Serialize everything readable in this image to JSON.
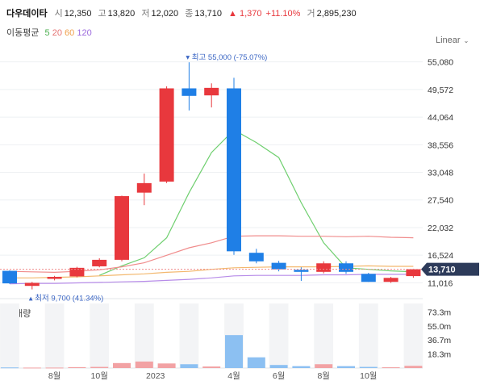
{
  "header": {
    "stock_name": "다우데이타",
    "open_label": "시",
    "open_value": "12,350",
    "high_label": "고",
    "high_value": "13,820",
    "low_label": "저",
    "low_value": "12,020",
    "close_label": "종",
    "close_value": "13,710",
    "change_value": "▲ 1,370",
    "change_pct": "+11.10%",
    "volume_label": "거",
    "volume_value": "2,895,230"
  },
  "moving_average": {
    "title": "이동평균",
    "periods": [
      {
        "label": "5",
        "color": "#4caf50"
      },
      {
        "label": "20",
        "color": "#e57373"
      },
      {
        "label": "60",
        "color": "#f0a04b"
      },
      {
        "label": "120",
        "color": "#9c6ade"
      }
    ]
  },
  "scale_mode": "Linear",
  "volume_panel": {
    "title": "거래량"
  },
  "colors": {
    "up": "#e8383d",
    "down": "#1f7fe6",
    "up_volume": "#f2a2a4",
    "down_volume": "#8cc0f2",
    "current_price_tag": "#2d3b5a"
  },
  "chart_data": {
    "type": "candlestick",
    "y_ticks": [
      "55,080",
      "49,572",
      "44,064",
      "38,556",
      "33,048",
      "27,540",
      "22,032",
      "16,524",
      "11,016"
    ],
    "y_range": [
      8500,
      56800
    ],
    "x_tick_labels": [
      "8월",
      "10월",
      "2023",
      "4월",
      "6월",
      "8월",
      "10월"
    ],
    "candles": [
      {
        "open": 13400,
        "high": 13500,
        "low": 10800,
        "close": 10900,
        "dir": "down",
        "volume": 0.8
      },
      {
        "open": 10400,
        "high": 11200,
        "low": 9700,
        "close": 11000,
        "dir": "up",
        "volume": 0.6
      },
      {
        "open": 11800,
        "high": 12400,
        "low": 11500,
        "close": 12200,
        "dir": "up",
        "volume": 0.6
      },
      {
        "open": 12300,
        "high": 14200,
        "low": 12100,
        "close": 14000,
        "dir": "up",
        "volume": 1.2
      },
      {
        "open": 14300,
        "high": 15900,
        "low": 14100,
        "close": 15600,
        "dir": "up",
        "volume": 1.5
      },
      {
        "open": 15600,
        "high": 28400,
        "low": 15300,
        "close": 28300,
        "dir": "up",
        "volume": 6.5
      },
      {
        "open": 29000,
        "high": 32800,
        "low": 26500,
        "close": 30900,
        "dir": "up",
        "volume": 8.5
      },
      {
        "open": 31200,
        "high": 50200,
        "low": 30900,
        "close": 49800,
        "dir": "up",
        "volume": 6.0
      },
      {
        "open": 49800,
        "high": 55000,
        "low": 45400,
        "close": 48300,
        "dir": "down",
        "volume": 5.0
      },
      {
        "open": 48400,
        "high": 50800,
        "low": 46000,
        "close": 49900,
        "dir": "up",
        "volume": 2.0
      },
      {
        "open": 49800,
        "high": 51900,
        "low": 16600,
        "close": 17300,
        "dir": "down",
        "volume": 43.0
      },
      {
        "open": 17000,
        "high": 17800,
        "low": 14900,
        "close": 15300,
        "dir": "down",
        "volume": 14.0
      },
      {
        "open": 15000,
        "high": 15400,
        "low": 13300,
        "close": 13700,
        "dir": "down",
        "volume": 4.0
      },
      {
        "open": 13600,
        "high": 14100,
        "low": 11400,
        "close": 13200,
        "dir": "down",
        "volume": 2.5
      },
      {
        "open": 13200,
        "high": 15300,
        "low": 12900,
        "close": 14900,
        "dir": "up",
        "volume": 5.0
      },
      {
        "open": 14900,
        "high": 15300,
        "low": 12800,
        "close": 13200,
        "dir": "down",
        "volume": 2.5
      },
      {
        "open": 12800,
        "high": 13000,
        "low": 11200,
        "close": 11200,
        "dir": "down",
        "volume": 1.5
      },
      {
        "open": 11200,
        "high": 12200,
        "low": 11000,
        "close": 12000,
        "dir": "up",
        "volume": 1.0
      },
      {
        "open": 12350,
        "high": 13820,
        "low": 12020,
        "close": 13710,
        "dir": "up",
        "volume": 2.9
      }
    ],
    "ma_lines": [
      {
        "name": "5",
        "color": "#6fcf6f",
        "values": [
          null,
          null,
          null,
          null,
          12500,
          14400,
          16000,
          20000,
          29000,
          37000,
          41500,
          39000,
          36000,
          27000,
          19000,
          14000,
          13700,
          13400,
          13200
        ]
      },
      {
        "name": "20",
        "color": "#f08c8c",
        "values": [
          13300,
          13200,
          13100,
          13300,
          13600,
          14200,
          15000,
          16500,
          18000,
          19000,
          20300,
          20400,
          20400,
          20300,
          20300,
          20200,
          20300,
          20100,
          20000
        ]
      },
      {
        "name": "60",
        "color": "#f3b86e",
        "values": [
          12000,
          12000,
          12100,
          12200,
          12400,
          12600,
          12800,
          13100,
          13300,
          13700,
          14000,
          14100,
          14200,
          14200,
          14200,
          14300,
          14400,
          14300,
          14300
        ]
      },
      {
        "name": "120",
        "color": "#b78ce8",
        "values": [
          10800,
          10900,
          10900,
          11000,
          11100,
          11200,
          11300,
          11500,
          11700,
          12000,
          12400,
          12500,
          12500,
          12500,
          12600,
          12600,
          12700,
          12700,
          12700
        ]
      }
    ],
    "volume_ticks": [
      "73.3m",
      "55.0m",
      "36.7m",
      "18.3m"
    ],
    "volume_range": [
      0,
      80
    ],
    "annotations": {
      "high": "최고 55,000 (-75.07%)",
      "low": "최저 9,700 (41.34%)",
      "current": "13,710"
    }
  }
}
